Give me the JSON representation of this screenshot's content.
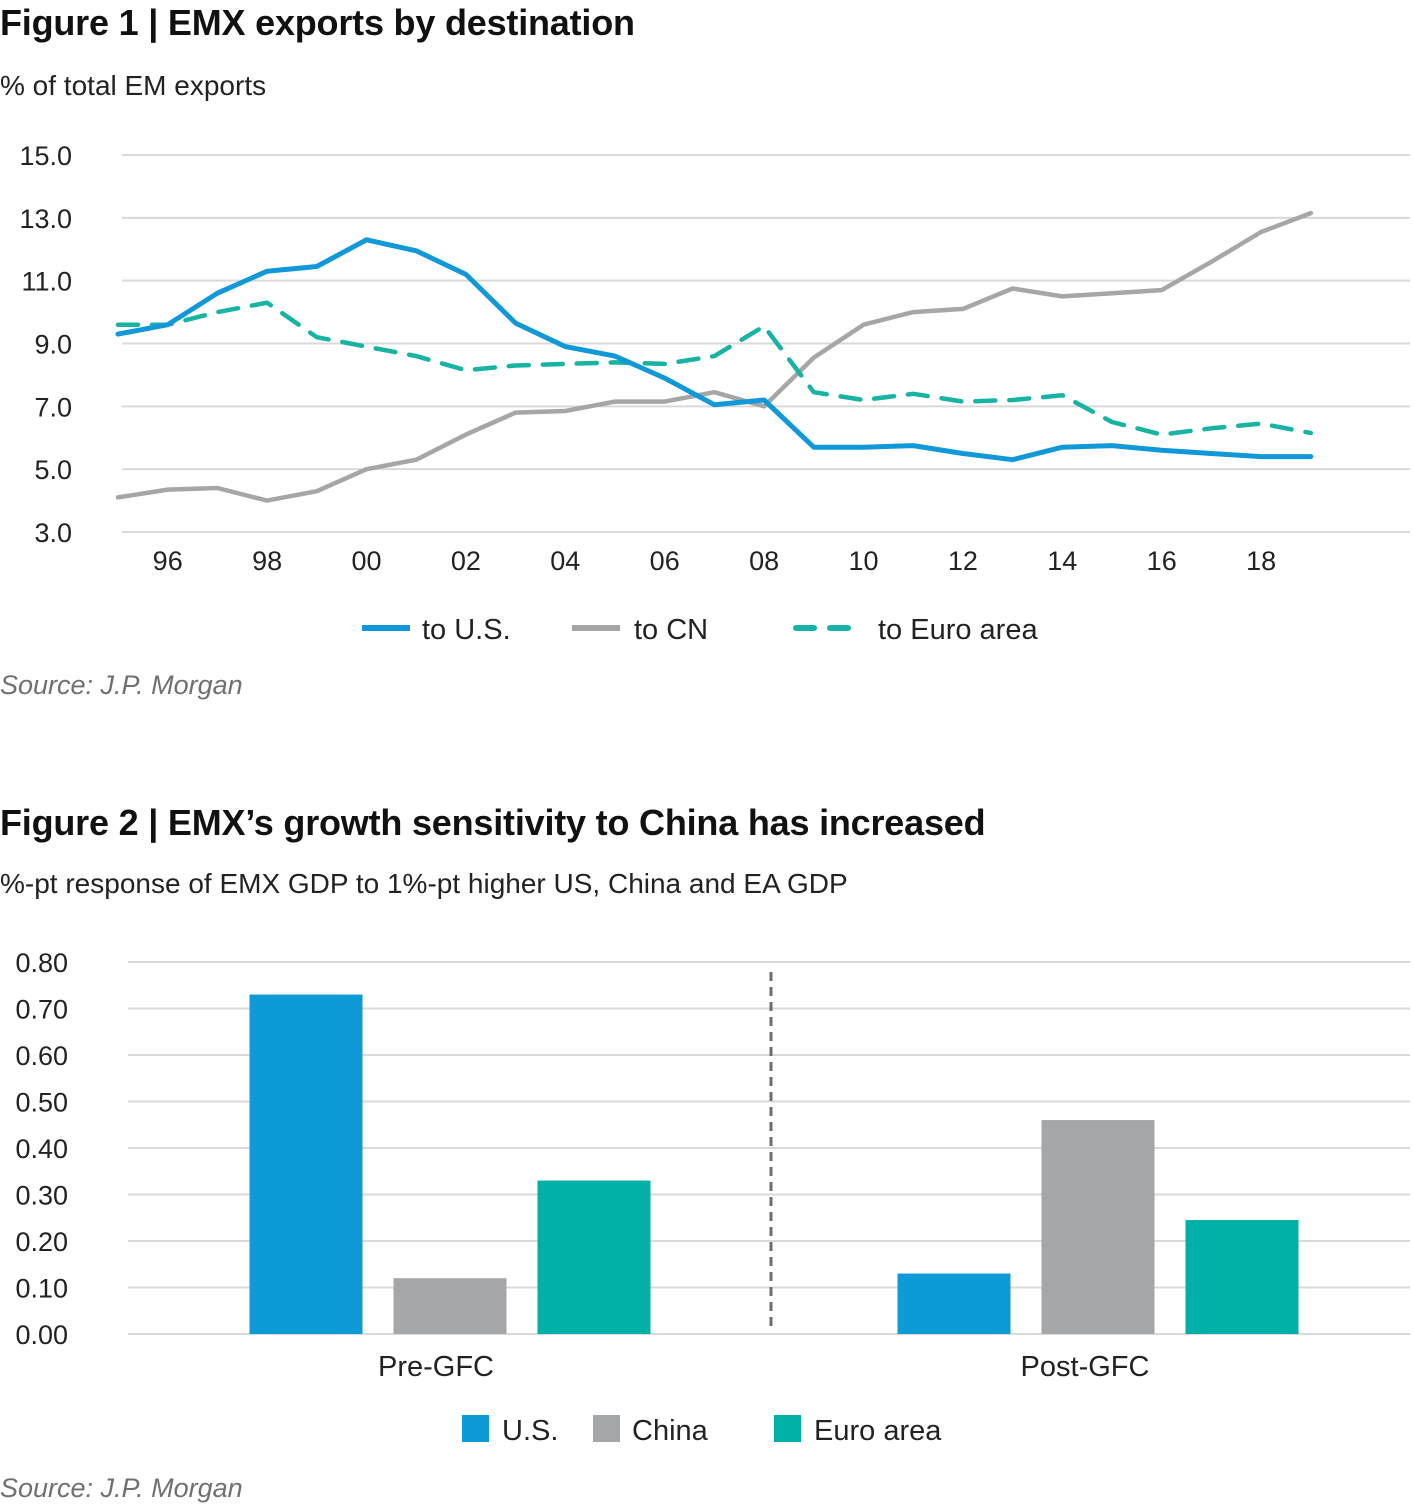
{
  "figure1": {
    "title": "Figure 1  |  EMX exports by destination",
    "subtitle": "% of total EM exports",
    "source": "Source: J.P. Morgan"
  },
  "figure2": {
    "title": "Figure 2  |  EMX’s growth sensitivity to China has increased",
    "subtitle": "%-pt response of EMX GDP to 1%-pt higher US, China and EA GDP",
    "source": "Source: J.P. Morgan"
  },
  "chart_data": [
    {
      "type": "line",
      "title": "EMX exports by destination",
      "ylabel": "% of total EM exports",
      "xlabel": "",
      "x": [
        1995,
        1996,
        1997,
        1998,
        1999,
        2000,
        2001,
        2002,
        2003,
        2004,
        2005,
        2006,
        2007,
        2008,
        2009,
        2010,
        2011,
        2012,
        2013,
        2014,
        2015,
        2016,
        2017,
        2018,
        2019
      ],
      "xlim": [
        1995,
        2020
      ],
      "x_ticks": [
        1996,
        1998,
        2000,
        2002,
        2004,
        2006,
        2008,
        2010,
        2012,
        2014,
        2016,
        2018
      ],
      "x_tick_labels": [
        "96",
        "98",
        "00",
        "02",
        "04",
        "06",
        "08",
        "10",
        "12",
        "14",
        "16",
        "18"
      ],
      "ylim": [
        3.0,
        15.0
      ],
      "y_ticks": [
        3.0,
        5.0,
        7.0,
        9.0,
        11.0,
        13.0,
        15.0
      ],
      "y_tick_labels": [
        "3.0",
        "5.0",
        "7.0",
        "9.0",
        "11.0",
        "13.0",
        "15.0"
      ],
      "grid": true,
      "legend_position": "bottom",
      "series": [
        {
          "name": "to U.S.",
          "color": "#1098d8",
          "dash": "solid",
          "values": [
            9.3,
            9.6,
            10.6,
            11.3,
            11.45,
            12.3,
            11.95,
            11.2,
            9.65,
            8.9,
            8.6,
            7.9,
            7.05,
            7.2,
            5.7,
            5.7,
            5.75,
            5.5,
            5.3,
            5.7,
            5.75,
            5.6,
            5.5,
            5.4,
            5.4
          ]
        },
        {
          "name": "to CN",
          "color": "#a6a6a6",
          "dash": "solid",
          "values": [
            4.1,
            4.35,
            4.4,
            4.0,
            4.3,
            5.0,
            5.3,
            6.1,
            6.8,
            6.85,
            7.15,
            7.15,
            7.45,
            7.0,
            8.55,
            9.6,
            10.0,
            10.1,
            10.75,
            10.5,
            10.6,
            10.7,
            11.6,
            12.55,
            13.15
          ]
        },
        {
          "name": "to Euro area",
          "color": "#17b3a3",
          "dash": "dashed",
          "values": [
            9.6,
            9.6,
            10.0,
            10.3,
            9.2,
            8.9,
            8.6,
            8.15,
            8.3,
            8.35,
            8.4,
            8.35,
            8.6,
            9.55,
            7.45,
            7.2,
            7.4,
            7.15,
            7.2,
            7.35,
            6.5,
            6.1,
            6.3,
            6.45,
            6.15
          ]
        }
      ]
    },
    {
      "type": "bar",
      "title": "EMX's growth sensitivity to China has increased",
      "ylabel": "%-pt response of EMX GDP to 1%-pt higher US, China and EA GDP",
      "xlabel": "",
      "categories": [
        "Pre-GFC",
        "Post-GFC"
      ],
      "ylim": [
        0.0,
        0.8
      ],
      "y_ticks": [
        0.0,
        0.1,
        0.2,
        0.3,
        0.4,
        0.5,
        0.6,
        0.7,
        0.8
      ],
      "y_tick_labels": [
        "0.00",
        "0.10",
        "0.20",
        "0.30",
        "0.40",
        "0.50",
        "0.60",
        "0.70",
        "0.80"
      ],
      "grid": true,
      "legend_position": "bottom",
      "divider": "dashed vertical line between categories",
      "series": [
        {
          "name": "U.S.",
          "color": "#0e9ad6",
          "values": [
            0.73,
            0.13
          ]
        },
        {
          "name": "China",
          "color": "#a5a6a8",
          "values": [
            0.12,
            0.46
          ]
        },
        {
          "name": "Euro area",
          "color": "#00afa5",
          "values": [
            0.33,
            0.245
          ]
        }
      ]
    }
  ]
}
